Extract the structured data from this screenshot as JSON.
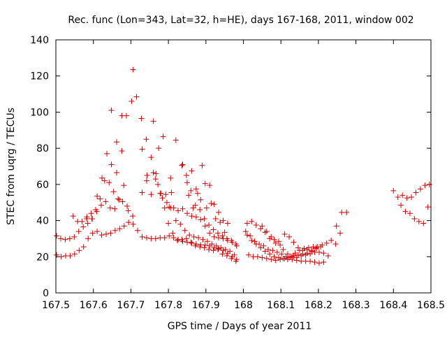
{
  "chart_data": {
    "type": "scatter",
    "title": "Rec. func (Lon=343, Lat=32, h=HE), days 167-168, 2011, window 002",
    "xlabel": "GPS time / Days of year 2011",
    "ylabel": "STEC from uqrg / TECUs",
    "xlim": [
      167.5,
      168.5
    ],
    "ylim": [
      0,
      140
    ],
    "xticks": [
      167.5,
      167.6,
      167.7,
      167.8,
      167.9,
      168,
      168.1,
      168.2,
      168.3,
      168.4,
      168.5
    ],
    "xtick_labels": [
      "167.5",
      "167.6",
      "167.7",
      "167.8",
      "167.9",
      "168",
      "168.1",
      "168.2",
      "168.3",
      "168.4",
      "168.5"
    ],
    "yticks": [
      0,
      20,
      40,
      60,
      80,
      100,
      120,
      140
    ],
    "ytick_labels": [
      "0",
      "20",
      "40",
      "60",
      "80",
      "100",
      "120",
      "140"
    ],
    "grid": false,
    "marker": "plus",
    "marker_color": "#cc0000",
    "points": [
      [
        167.502,
        31.5
      ],
      [
        167.513,
        30.0
      ],
      [
        167.525,
        29.5
      ],
      [
        167.537,
        30.0
      ],
      [
        167.549,
        31.0
      ],
      [
        167.561,
        34.0
      ],
      [
        167.573,
        36.5
      ],
      [
        167.585,
        38.5
      ],
      [
        167.597,
        41.0
      ],
      [
        167.609,
        45.0
      ],
      [
        167.621,
        48.5
      ],
      [
        167.633,
        50.5
      ],
      [
        167.645,
        47.0
      ],
      [
        167.657,
        46.5
      ],
      [
        167.669,
        51.5
      ],
      [
        167.681,
        59.5
      ],
      [
        167.693,
        45.5
      ],
      [
        167.705,
        42.5
      ],
      [
        167.502,
        21.0
      ],
      [
        167.514,
        20.0
      ],
      [
        167.526,
        20.5
      ],
      [
        167.538,
        20.5
      ],
      [
        167.55,
        21.5
      ],
      [
        167.562,
        23.5
      ],
      [
        167.574,
        25.5
      ],
      [
        167.586,
        30.0
      ],
      [
        167.598,
        33.0
      ],
      [
        167.61,
        34.0
      ],
      [
        167.622,
        32.0
      ],
      [
        167.634,
        32.5
      ],
      [
        167.646,
        33.0
      ],
      [
        167.658,
        34.5
      ],
      [
        167.67,
        35.5
      ],
      [
        167.682,
        37.0
      ],
      [
        167.694,
        39.0
      ],
      [
        167.706,
        38.0
      ],
      [
        167.718,
        34.5
      ],
      [
        167.73,
        31.0
      ],
      [
        167.742,
        30.5
      ],
      [
        167.754,
        30.0
      ],
      [
        167.766,
        30.0
      ],
      [
        167.778,
        30.5
      ],
      [
        167.79,
        30.5
      ],
      [
        167.802,
        31.5
      ],
      [
        167.814,
        30.5
      ],
      [
        167.826,
        29.5
      ],
      [
        167.838,
        28.5
      ],
      [
        167.85,
        28.0
      ],
      [
        167.862,
        27.5
      ],
      [
        167.874,
        27.0
      ],
      [
        167.886,
        26.5
      ],
      [
        167.898,
        26.5
      ],
      [
        167.91,
        26.0
      ],
      [
        167.922,
        25.0
      ],
      [
        167.934,
        24.5
      ],
      [
        167.946,
        23.5
      ],
      [
        167.958,
        22.0
      ],
      [
        167.97,
        20.0
      ],
      [
        167.982,
        18.5
      ],
      [
        167.546,
        42.5
      ],
      [
        167.558,
        39.5
      ],
      [
        167.57,
        39.5
      ],
      [
        167.582,
        41.0
      ],
      [
        167.594,
        44.0
      ],
      [
        167.606,
        46.0
      ],
      [
        167.618,
        52.0
      ],
      [
        167.63,
        62.0
      ],
      [
        167.642,
        61.0
      ],
      [
        167.654,
        56.0
      ],
      [
        167.666,
        52.0
      ],
      [
        167.678,
        50.5
      ],
      [
        167.69,
        48.0
      ],
      [
        167.583,
        42.0
      ],
      [
        167.596,
        41.0
      ],
      [
        167.61,
        53.5
      ],
      [
        167.623,
        63.5
      ],
      [
        167.636,
        77.0
      ],
      [
        167.648,
        71.0
      ],
      [
        167.662,
        83.5
      ],
      [
        167.676,
        78.5
      ],
      [
        167.688,
        98.0
      ],
      [
        167.702,
        106.0
      ],
      [
        167.715,
        108.5
      ],
      [
        167.728,
        96.5
      ],
      [
        167.741,
        85.0
      ],
      [
        167.754,
        75.0
      ],
      [
        167.767,
        66.0
      ],
      [
        167.78,
        55.0
      ],
      [
        167.793,
        54.5
      ],
      [
        167.806,
        47.0
      ],
      [
        167.648,
        101.0
      ],
      [
        167.662,
        66.5
      ],
      [
        167.676,
        98.0
      ],
      [
        167.706,
        123.5
      ],
      [
        167.73,
        79.5
      ],
      [
        167.743,
        65.0
      ],
      [
        167.76,
        95.0
      ],
      [
        167.774,
        80.0
      ],
      [
        167.786,
        86.5
      ],
      [
        167.806,
        63.5
      ],
      [
        167.82,
        84.5
      ],
      [
        167.73,
        55.5
      ],
      [
        167.742,
        62.0
      ],
      [
        167.754,
        54.5
      ],
      [
        167.766,
        63.0
      ],
      [
        167.778,
        55.0
      ],
      [
        167.79,
        47.0
      ],
      [
        167.802,
        47.5
      ],
      [
        167.814,
        47.0
      ],
      [
        167.826,
        45.5
      ],
      [
        167.838,
        46.5
      ],
      [
        167.85,
        44.0
      ],
      [
        167.862,
        42.5
      ],
      [
        167.874,
        42.0
      ],
      [
        167.886,
        40.5
      ],
      [
        167.898,
        37.0
      ],
      [
        167.91,
        33.0
      ],
      [
        167.922,
        31.0
      ],
      [
        167.934,
        30.5
      ],
      [
        167.946,
        30.0
      ],
      [
        167.958,
        29.0
      ],
      [
        167.97,
        28.0
      ],
      [
        167.982,
        26.0
      ],
      [
        167.76,
        66.5
      ],
      [
        167.772,
        60.0
      ],
      [
        167.784,
        52.5
      ],
      [
        167.796,
        50.0
      ],
      [
        167.808,
        55.5
      ],
      [
        167.82,
        40.0
      ],
      [
        167.832,
        38.0
      ],
      [
        167.844,
        34.5
      ],
      [
        167.856,
        32.0
      ],
      [
        167.868,
        31.0
      ],
      [
        167.88,
        30.5
      ],
      [
        167.892,
        29.5
      ],
      [
        167.904,
        28.5
      ],
      [
        167.916,
        27.0
      ],
      [
        167.928,
        26.0
      ],
      [
        167.94,
        25.0
      ],
      [
        167.952,
        24.0
      ],
      [
        167.964,
        23.0
      ],
      [
        167.976,
        21.0
      ],
      [
        167.836,
        70.5
      ],
      [
        167.848,
        65.0
      ],
      [
        167.86,
        56.5
      ],
      [
        167.872,
        48.5
      ],
      [
        167.884,
        46.0
      ],
      [
        167.896,
        41.0
      ],
      [
        167.908,
        37.5
      ],
      [
        167.92,
        35.0
      ],
      [
        167.932,
        33.0
      ],
      [
        167.944,
        31.5
      ],
      [
        167.956,
        30.0
      ],
      [
        167.968,
        29.0
      ],
      [
        167.98,
        27.0
      ],
      [
        167.838,
        71.0
      ],
      [
        167.85,
        61.0
      ],
      [
        167.862,
        67.5
      ],
      [
        167.874,
        57.5
      ],
      [
        167.886,
        51.5
      ],
      [
        167.898,
        60.5
      ],
      [
        167.91,
        59.5
      ],
      [
        167.922,
        49.0
      ],
      [
        167.934,
        44.5
      ],
      [
        167.946,
        40.0
      ],
      [
        167.958,
        38.5
      ],
      [
        167.854,
        54.0
      ],
      [
        167.866,
        47.0
      ],
      [
        167.878,
        55.0
      ],
      [
        167.89,
        70.5
      ],
      [
        167.902,
        47.0
      ],
      [
        167.914,
        49.5
      ],
      [
        167.926,
        41.0
      ],
      [
        167.938,
        39.0
      ],
      [
        167.95,
        33.5
      ],
      [
        167.8,
        38.5
      ],
      [
        167.812,
        33.0
      ],
      [
        167.824,
        29.0
      ],
      [
        167.836,
        29.5
      ],
      [
        167.848,
        30.0
      ],
      [
        167.86,
        28.0
      ],
      [
        167.872,
        26.0
      ],
      [
        167.884,
        25.5
      ],
      [
        167.896,
        25.0
      ],
      [
        167.908,
        24.0
      ],
      [
        167.92,
        23.5
      ],
      [
        167.932,
        24.0
      ],
      [
        167.944,
        21.5
      ],
      [
        167.956,
        20.5
      ],
      [
        167.968,
        19.0
      ],
      [
        167.98,
        17.5
      ],
      [
        168.01,
        32.0
      ],
      [
        168.022,
        29.0
      ],
      [
        168.034,
        27.0
      ],
      [
        168.046,
        25.0
      ],
      [
        168.058,
        23.0
      ],
      [
        168.07,
        21.5
      ],
      [
        168.082,
        20.0
      ],
      [
        168.094,
        19.5
      ],
      [
        168.106,
        19.0
      ],
      [
        168.118,
        18.5
      ],
      [
        168.13,
        18.5
      ],
      [
        168.142,
        18.0
      ],
      [
        168.154,
        17.5
      ],
      [
        168.166,
        17.5
      ],
      [
        168.178,
        17.5
      ],
      [
        168.19,
        17.0
      ],
      [
        168.202,
        16.5
      ],
      [
        168.214,
        17.0
      ],
      [
        168.01,
        38.5
      ],
      [
        168.022,
        39.5
      ],
      [
        168.034,
        37.5
      ],
      [
        168.046,
        35.5
      ],
      [
        168.058,
        33.5
      ],
      [
        168.07,
        30.0
      ],
      [
        168.082,
        29.5
      ],
      [
        168.094,
        28.5
      ],
      [
        168.106,
        24.0
      ],
      [
        168.118,
        21.5
      ],
      [
        168.13,
        20.0
      ],
      [
        168.142,
        19.5
      ],
      [
        168.154,
        20.5
      ],
      [
        168.166,
        21.0
      ],
      [
        168.178,
        21.5
      ],
      [
        168.19,
        22.5
      ],
      [
        168.202,
        22.5
      ],
      [
        168.214,
        22.0
      ],
      [
        168.226,
        20.5
      ],
      [
        168.006,
        34.0
      ],
      [
        168.018,
        31.5
      ],
      [
        168.03,
        28.5
      ],
      [
        168.042,
        27.0
      ],
      [
        168.054,
        26.0
      ],
      [
        168.066,
        24.0
      ],
      [
        168.078,
        23.5
      ],
      [
        168.09,
        22.5
      ],
      [
        168.102,
        21.5
      ],
      [
        168.114,
        20.0
      ],
      [
        168.126,
        20.0
      ],
      [
        168.138,
        22.0
      ],
      [
        168.15,
        23.5
      ],
      [
        168.162,
        24.5
      ],
      [
        168.174,
        25.0
      ],
      [
        168.186,
        25.5
      ],
      [
        168.198,
        25.5
      ],
      [
        168.21,
        26.5
      ],
      [
        168.222,
        27.5
      ],
      [
        168.234,
        29.0
      ],
      [
        168.246,
        27.0
      ],
      [
        168.258,
        33.0
      ],
      [
        168.014,
        21.0
      ],
      [
        168.026,
        20.0
      ],
      [
        168.038,
        20.0
      ],
      [
        168.05,
        19.5
      ],
      [
        168.062,
        19.0
      ],
      [
        168.074,
        18.5
      ],
      [
        168.086,
        18.0
      ],
      [
        168.098,
        18.5
      ],
      [
        168.11,
        19.0
      ],
      [
        168.122,
        19.5
      ],
      [
        168.134,
        20.5
      ],
      [
        168.146,
        21.0
      ],
      [
        168.158,
        21.5
      ],
      [
        168.17,
        22.0
      ],
      [
        168.182,
        23.5
      ],
      [
        168.194,
        24.5
      ],
      [
        168.206,
        25.5
      ],
      [
        168.05,
        37.0
      ],
      [
        168.062,
        34.0
      ],
      [
        168.074,
        31.0
      ],
      [
        168.086,
        27.5
      ],
      [
        168.098,
        26.5
      ],
      [
        168.11,
        32.5
      ],
      [
        168.122,
        31.0
      ],
      [
        168.134,
        28.0
      ],
      [
        168.146,
        25.0
      ],
      [
        168.158,
        23.5
      ],
      [
        168.17,
        24.0
      ],
      [
        168.182,
        23.0
      ],
      [
        168.194,
        25.0
      ],
      [
        168.248,
        37.0
      ],
      [
        168.262,
        44.5
      ],
      [
        168.275,
        44.5
      ],
      [
        168.4,
        56.5
      ],
      [
        168.412,
        53.0
      ],
      [
        168.424,
        54.0
      ],
      [
        168.436,
        52.5
      ],
      [
        168.448,
        53.0
      ],
      [
        168.46,
        55.5
      ],
      [
        168.472,
        57.5
      ],
      [
        168.484,
        59.5
      ],
      [
        168.496,
        60.0
      ],
      [
        168.42,
        48.5
      ],
      [
        168.432,
        45.0
      ],
      [
        168.444,
        44.0
      ],
      [
        168.456,
        41.0
      ],
      [
        168.468,
        39.5
      ],
      [
        168.48,
        38.5
      ],
      [
        168.492,
        47.5
      ]
    ]
  }
}
